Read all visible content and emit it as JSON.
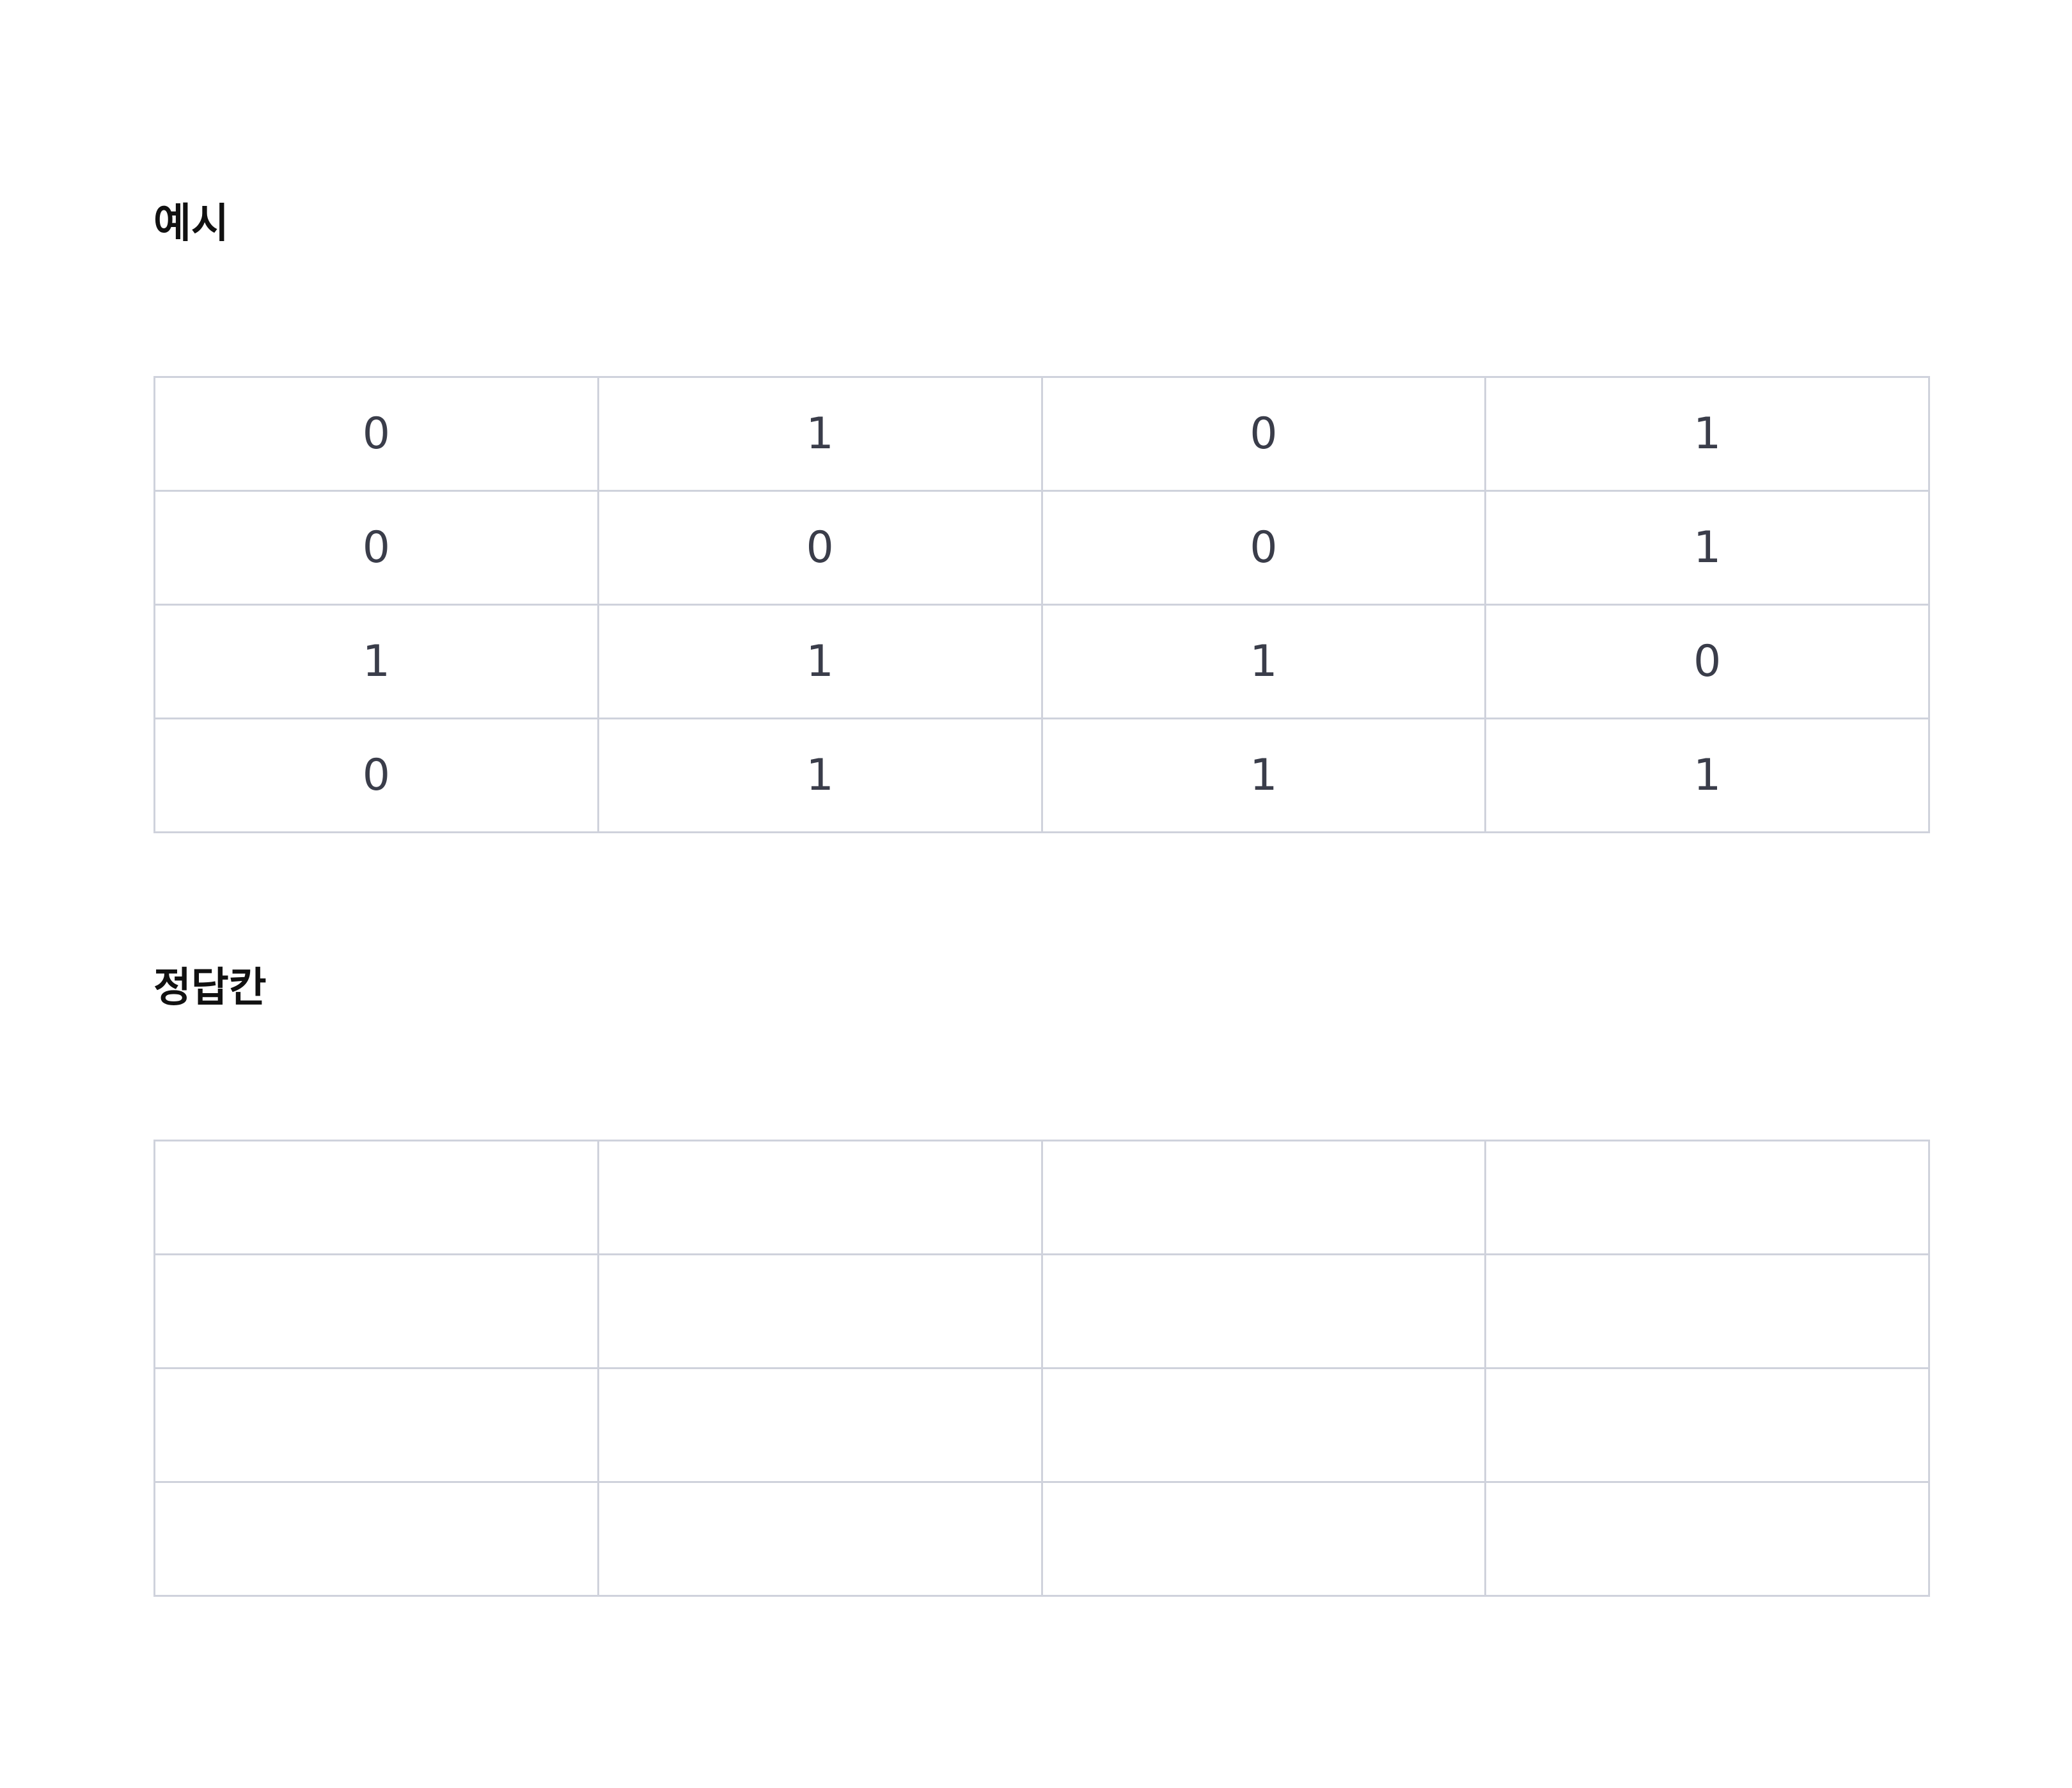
{
  "example": {
    "title": "예시",
    "rows": [
      [
        "0",
        "1",
        "0",
        "1"
      ],
      [
        "0",
        "0",
        "0",
        "1"
      ],
      [
        "1",
        "1",
        "1",
        "0"
      ],
      [
        "0",
        "1",
        "1",
        "1"
      ]
    ]
  },
  "answer": {
    "title": "정답칸",
    "rows": [
      [
        "",
        "",
        "",
        ""
      ],
      [
        "",
        "",
        "",
        ""
      ],
      [
        "",
        "",
        "",
        ""
      ],
      [
        "",
        "",
        "",
        ""
      ]
    ]
  }
}
